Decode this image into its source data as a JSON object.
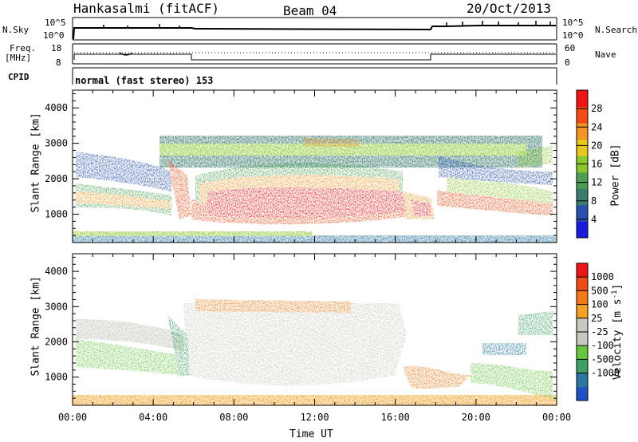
{
  "header": {
    "station": "Hankasalmi (fitACF)",
    "beam": "Beam 04",
    "date": "20/Oct/2013"
  },
  "strips": {
    "nsky_label": "N.Sky",
    "nsky_ticks": [
      "10^5",
      "10^0"
    ],
    "nsearch_label": "N.Search",
    "nsearch_ticks": [
      "10^5",
      "10^0"
    ],
    "freq_label": "Freq.",
    "freq_unit": "[MHz]",
    "freq_ticks": [
      "18",
      "8"
    ],
    "nave_label": "Nave",
    "nave_ticks": [
      "60",
      "0"
    ],
    "cpid_label": "CPID",
    "cpid_text": "normal (fast stereo) 153"
  },
  "chart_data": [
    {
      "type": "heatmap",
      "name": "power",
      "ylabel": "Slant Range [km]",
      "x_range": [
        0,
        24
      ],
      "y_range": [
        200,
        4500
      ],
      "y_ticks": [
        1000,
        2000,
        3000,
        4000
      ],
      "colorbar": {
        "label": "Power [dB]",
        "ticks": [
          "4",
          "8",
          "12",
          "16",
          "20",
          "24",
          "28"
        ],
        "min": 0,
        "max": 32,
        "colors": [
          "#1a1adc",
          "#2850b0",
          "#3a7c6e",
          "#4aa050",
          "#8ac82c",
          "#e6c81e",
          "#f5941e",
          "#f54a14",
          "#f01414"
        ]
      }
    },
    {
      "type": "heatmap",
      "name": "velocity",
      "ylabel": "Slant Range [km]",
      "x_range": [
        0,
        24
      ],
      "y_range": [
        200,
        4500
      ],
      "y_ticks": [
        1000,
        2000,
        3000,
        4000
      ],
      "xlabel": "Time UT",
      "x_ticks": [
        "00:00",
        "04:00",
        "08:00",
        "12:00",
        "16:00",
        "20:00",
        "00:00"
      ],
      "colorbar": {
        "label": "Velocity [m s",
        "label_sup": "-1",
        "label_end": "]",
        "ticks": [
          "1000",
          "500",
          "100",
          "25",
          "-25",
          "-100",
          "-500",
          "-1000"
        ],
        "colors": [
          "#1e50c8",
          "#2878a0",
          "#3ca064",
          "#64c83c",
          "#c8c8c0",
          "#c8c8c0",
          "#f5a01e",
          "#f57814",
          "#f04a14",
          "#f01414"
        ]
      }
    }
  ]
}
